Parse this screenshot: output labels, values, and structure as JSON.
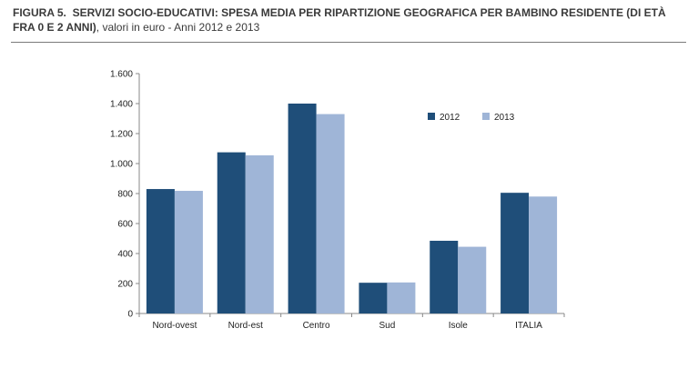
{
  "caption": {
    "prefix": "FIGURA 5.",
    "title": "SERVIZI SOCIO-EDUCATIVI: SPESA MEDIA PER RIPARTIZIONE GEOGRAFICA PER BAMBINO RESIDENTE (DI ETÀ FRA 0 E 2 ANNI)",
    "suffix": ", valori in euro - Anni 2012 e 2013"
  },
  "chart_data": {
    "type": "bar",
    "title": "",
    "xlabel": "",
    "ylabel": "",
    "categories": [
      "Nord-ovest",
      "Nord-est",
      "Centro",
      "Sud",
      "Isole",
      "ITALIA"
    ],
    "series": [
      {
        "name": "2012",
        "color": "#1f4e79",
        "values": [
          830,
          1075,
          1400,
          205,
          485,
          805
        ]
      },
      {
        "name": "2013",
        "color": "#9fb5d7",
        "values": [
          818,
          1055,
          1330,
          207,
          445,
          780
        ]
      }
    ],
    "ylim": [
      0,
      1600
    ],
    "yticks": [
      0,
      200,
      400,
      600,
      800,
      1000,
      1200,
      1400,
      1600
    ],
    "ytick_labels": [
      "0",
      "200",
      "400",
      "600",
      "800",
      "1.000",
      "1.200",
      "1.400",
      "1.600"
    ],
    "grid": false,
    "legend_position": "top-right"
  }
}
